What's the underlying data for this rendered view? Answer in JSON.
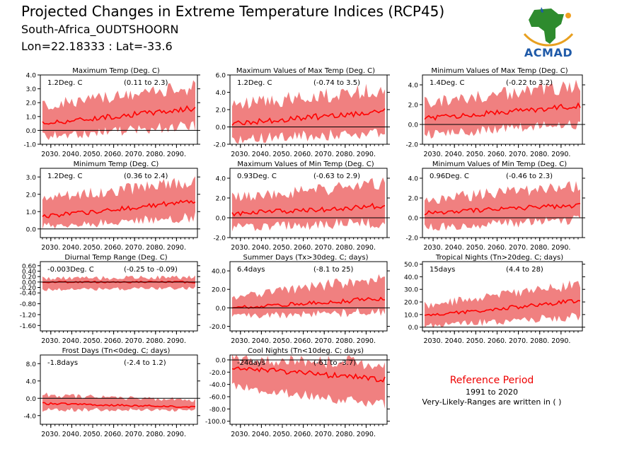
{
  "header": {
    "title": "Projected Changes in Extreme Temperature Indices (RCP45)",
    "location": "South-Africa_OUDTSHOORN",
    "coords": "Lon=22.18333 : Lat=-33.6"
  },
  "logo": {
    "text": "ACMAD",
    "icon": "africa-map-logo"
  },
  "reference": {
    "title": "Reference Period",
    "years": "1991 to 2020",
    "note": "Very-Likely-Ranges are written in ( )"
  },
  "colors": {
    "band": "#f08080",
    "median": "#ff0000",
    "zero": "#000000"
  },
  "chart_data": [
    {
      "type": "area",
      "title": "Maximum Temp (Deg. C)",
      "summary": "1.2Deg. C",
      "range": "(0.11 to 2.3)",
      "ticks": [
        4.0,
        3.0,
        2.0,
        1.0,
        0.0,
        -1.0
      ],
      "ylim": [
        -1.0,
        4.0
      ],
      "xticks": [
        "2030.",
        "2040.",
        "2050.",
        "2060.",
        "2070.",
        "2080.",
        "2090."
      ],
      "x_range": [
        2025,
        2100
      ],
      "median_trend": [
        0.5,
        1.6
      ],
      "lower_trend": [
        -0.3,
        0.5
      ],
      "upper_trend": [
        1.6,
        2.9
      ]
    },
    {
      "type": "area",
      "title": "Maximum Values of Max Temp (Deg. C)",
      "summary": "1.2Deg. C",
      "range": "(-0.74 to 3.5)",
      "ticks": [
        6.0,
        4.0,
        2.0,
        0.0,
        -2.0
      ],
      "ylim": [
        -2.0,
        6.0
      ],
      "xticks": [
        "2030.",
        "2040.",
        "2050.",
        "2060.",
        "2070.",
        "2080.",
        "2090."
      ],
      "x_range": [
        2025,
        2100
      ],
      "median_trend": [
        0.4,
        1.8
      ],
      "lower_trend": [
        -1.2,
        -0.3
      ],
      "upper_trend": [
        2.2,
        4.0
      ]
    },
    {
      "type": "area",
      "title": "Minimum Values of Max Temp (Deg. C)",
      "summary": "1.4Deg. C",
      "range": "(-0.22 to 3.2)",
      "ticks": [
        4.0,
        2.0,
        0.0,
        -2.0
      ],
      "ylim": [
        -2.0,
        5.0
      ],
      "xticks": [
        "2030.",
        "2040.",
        "2050.",
        "2060.",
        "2070.",
        "2080.",
        "2090."
      ],
      "x_range": [
        2025,
        2100
      ],
      "median_trend": [
        0.6,
        1.9
      ],
      "lower_trend": [
        -0.8,
        0.3
      ],
      "upper_trend": [
        2.0,
        3.6
      ]
    },
    {
      "type": "area",
      "title": "Minimum Temp (Deg. C)",
      "summary": "1.2Deg. C",
      "range": "(0.36 to 2.4)",
      "ticks": [
        3.0,
        2.0,
        1.0,
        0.0
      ],
      "ylim": [
        -0.5,
        3.5
      ],
      "xticks": [
        "2030.",
        "2040.",
        "2050.",
        "2060.",
        "2070.",
        "2080.",
        "2090."
      ],
      "x_range": [
        2025,
        2100
      ],
      "median_trend": [
        0.7,
        1.6
      ],
      "lower_trend": [
        0.2,
        0.8
      ],
      "upper_trend": [
        1.6,
        2.6
      ]
    },
    {
      "type": "area",
      "title": "Maximum Values of Min Temp (Deg. C)",
      "summary": "0.93Deg. C",
      "range": "(-0.63 to 2.9)",
      "ticks": [
        4.0,
        2.0,
        0.0,
        -2.0
      ],
      "ylim": [
        -2.0,
        5.0
      ],
      "xticks": [
        "2030.",
        "2040.",
        "2050.",
        "2060.",
        "2070.",
        "2080.",
        "2090."
      ],
      "x_range": [
        2025,
        2100
      ],
      "median_trend": [
        0.4,
        1.2
      ],
      "lower_trend": [
        -0.8,
        -0.2
      ],
      "upper_trend": [
        1.8,
        3.2
      ]
    },
    {
      "type": "area",
      "title": "Minimum Values of Min Temp (Deg. C)",
      "summary": "0.96Deg. C",
      "range": "(-0.46 to 2.3)",
      "ticks": [
        4.0,
        2.0,
        0.0,
        -2.0
      ],
      "ylim": [
        -2.0,
        5.0
      ],
      "xticks": [
        "2030.",
        "2040.",
        "2050.",
        "2060.",
        "2070.",
        "2080.",
        "2090."
      ],
      "x_range": [
        2025,
        2100
      ],
      "median_trend": [
        0.5,
        1.3
      ],
      "lower_trend": [
        -0.8,
        0.0
      ],
      "upper_trend": [
        1.6,
        3.0
      ]
    },
    {
      "type": "area",
      "title": "Diurnal Temp Range (Deg. C)",
      "summary": "-0.003Deg. C",
      "range": "(-0.25 to -0.09)",
      "ticks": [
        0.6,
        0.4,
        0.2,
        0.0,
        -0.2,
        -0.4,
        -0.8,
        -1.2,
        -1.6
      ],
      "tick_labels": [
        "0.60",
        "0.40",
        "0.20",
        "0.00",
        "-0.20",
        "-0.40",
        "-0.80",
        "-1.20",
        "-1.60"
      ],
      "ylim": [
        -1.8,
        0.75
      ],
      "xticks": [
        "2030.",
        "2040.",
        "2050.",
        "2060.",
        "2070.",
        "2080.",
        "2090."
      ],
      "x_range": [
        2025,
        2100
      ],
      "median_trend": [
        0.0,
        0.0
      ],
      "lower_trend": [
        -0.25,
        -0.2
      ],
      "upper_trend": [
        0.1,
        0.15
      ]
    },
    {
      "type": "area",
      "title": "Summer Days (Tx>30deg. C; days)",
      "summary": "6.4days",
      "range": "(-8.1 to 25)",
      "ticks": [
        40.0,
        20.0,
        0.0,
        -20.0
      ],
      "ylim": [
        -25,
        50
      ],
      "xticks": [
        "2030.",
        "2040.",
        "2050.",
        "2060.",
        "2070.",
        "2080.",
        "2090."
      ],
      "x_range": [
        2025,
        2100
      ],
      "median_trend": [
        0.0,
        10.0
      ],
      "lower_trend": [
        -8.0,
        -2.0
      ],
      "upper_trend": [
        10.0,
        30.0
      ]
    },
    {
      "type": "area",
      "title": "Tropical Nights (Tn>20deg. C; days)",
      "summary": "15days",
      "range": "(4.4 to 28)",
      "ticks": [
        50.0,
        40.0,
        30.0,
        20.0,
        10.0,
        0.0
      ],
      "ylim": [
        -3,
        52
      ],
      "xticks": [
        "2030.",
        "2040.",
        "2050.",
        "2060.",
        "2070.",
        "2080.",
        "2090."
      ],
      "x_range": [
        2025,
        2100
      ],
      "median_trend": [
        9.0,
        21.0
      ],
      "lower_trend": [
        2.0,
        10.0
      ],
      "upper_trend": [
        16.0,
        32.0
      ]
    },
    {
      "type": "area",
      "title": "Frost Days (Tn<0deg. C; days)",
      "summary": "-1.8days",
      "range": "(-2.4 to 1.2)",
      "ticks": [
        8.0,
        4.0,
        0.0,
        -4.0
      ],
      "ylim": [
        -6,
        10
      ],
      "xticks": [
        "2030.",
        "2040.",
        "2050.",
        "2060.",
        "2070.",
        "2080.",
        "2090."
      ],
      "x_range": [
        2025,
        2100
      ],
      "median_trend": [
        -1.2,
        -2.0
      ],
      "lower_trend": [
        -2.4,
        -2.6
      ],
      "upper_trend": [
        0.5,
        -0.6
      ]
    },
    {
      "type": "area",
      "title": "Cool Nights (Tn<10deg. C; days)",
      "summary": "-24days",
      "range": "(-61 to -3.7)",
      "ticks": [
        0.0,
        -20.0,
        -40.0,
        -60.0,
        -80.0,
        -100.0
      ],
      "ylim": [
        -105,
        8
      ],
      "xticks": [
        "2030.",
        "2040.",
        "2050.",
        "2060.",
        "2070.",
        "2080.",
        "2090."
      ],
      "x_range": [
        2025,
        2100
      ],
      "median_trend": [
        -12.0,
        -32.0
      ],
      "lower_trend": [
        -40.0,
        -70.0
      ],
      "upper_trend": [
        -2.0,
        -12.0
      ]
    }
  ]
}
